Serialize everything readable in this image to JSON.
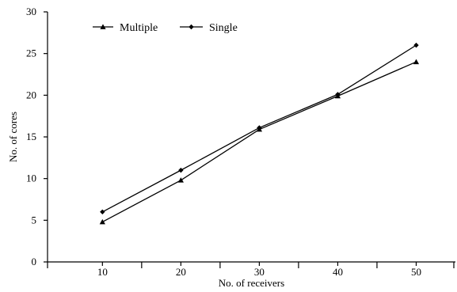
{
  "chart_data": {
    "type": "line",
    "title": "",
    "xlabel": "No. of receivers",
    "ylabel": "No. of cores",
    "xlim": [
      3,
      55
    ],
    "ylim": [
      0,
      30
    ],
    "xticks": [
      10,
      20,
      30,
      40,
      50
    ],
    "yticks": [
      0,
      5,
      10,
      15,
      20,
      25,
      30
    ],
    "grid": false,
    "legend_position": "top-left",
    "series": [
      {
        "name": "Multiple",
        "marker": "triangle",
        "color": "#000000",
        "x": [
          10,
          20,
          30,
          40,
          50
        ],
        "y": [
          4.8,
          9.8,
          15.9,
          19.9,
          24
        ]
      },
      {
        "name": "Single",
        "marker": "diamond",
        "color": "#000000",
        "x": [
          10,
          20,
          30,
          40,
          50
        ],
        "y": [
          6,
          11,
          16.1,
          20.1,
          26
        ]
      }
    ]
  }
}
